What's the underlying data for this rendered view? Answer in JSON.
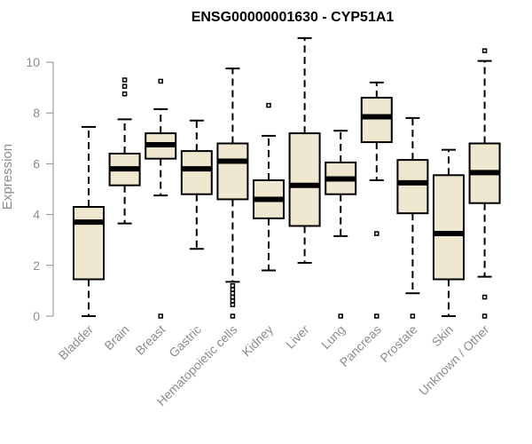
{
  "chart_data": {
    "type": "boxplot",
    "title": "ENSG00000001630 - CYP51A1",
    "ylabel": "Expression",
    "xlabel": "",
    "ylim": [
      0,
      11
    ],
    "yticks": [
      0,
      2,
      4,
      6,
      8,
      10
    ],
    "grid": false,
    "colors": {
      "box_fill": "#efe7cf",
      "stroke": "#000000",
      "axis": "#8c8c8c"
    },
    "categories": [
      "Bladder",
      "Brain",
      "Breast",
      "Gastric",
      "Hematopoietic cells",
      "Kidney",
      "Liver",
      "Lung",
      "Pancreas",
      "Prostate",
      "Skin",
      "Unknown / Other"
    ],
    "boxes": [
      {
        "category": "Bladder",
        "whisker_low": 0.0,
        "q1": 1.45,
        "median": 3.7,
        "q3": 4.3,
        "whisker_high": 7.45,
        "outliers": []
      },
      {
        "category": "Brain",
        "whisker_low": 3.65,
        "q1": 5.15,
        "median": 5.8,
        "q3": 6.4,
        "whisker_high": 7.75,
        "outliers": [
          8.75,
          9.05,
          9.3
        ]
      },
      {
        "category": "Breast",
        "whisker_low": 4.75,
        "q1": 6.2,
        "median": 6.75,
        "q3": 7.2,
        "whisker_high": 8.15,
        "outliers": [
          9.25,
          0.0
        ]
      },
      {
        "category": "Gastric",
        "whisker_low": 2.65,
        "q1": 4.8,
        "median": 5.8,
        "q3": 6.5,
        "whisker_high": 7.7,
        "outliers": []
      },
      {
        "category": "Hematopoietic cells",
        "whisker_low": 1.35,
        "q1": 4.6,
        "median": 6.1,
        "q3": 6.8,
        "whisker_high": 9.75,
        "outliers": [
          1.2,
          1.05,
          0.9,
          0.75,
          0.6,
          0.45,
          0.0
        ]
      },
      {
        "category": "Kidney",
        "whisker_low": 1.8,
        "q1": 3.85,
        "median": 4.6,
        "q3": 5.35,
        "whisker_high": 7.1,
        "outliers": [
          8.3
        ]
      },
      {
        "category": "Liver",
        "whisker_low": 2.1,
        "q1": 3.55,
        "median": 5.15,
        "q3": 7.2,
        "whisker_high": 10.95,
        "outliers": []
      },
      {
        "category": "Lung",
        "whisker_low": 3.15,
        "q1": 4.8,
        "median": 5.4,
        "q3": 6.05,
        "whisker_high": 7.3,
        "outliers": [
          0.0
        ]
      },
      {
        "category": "Pancreas",
        "whisker_low": 5.35,
        "q1": 6.85,
        "median": 7.85,
        "q3": 8.6,
        "whisker_high": 9.2,
        "outliers": [
          3.25,
          0.0
        ]
      },
      {
        "category": "Prostate",
        "whisker_low": 0.9,
        "q1": 4.05,
        "median": 5.25,
        "q3": 6.15,
        "whisker_high": 7.8,
        "outliers": [
          0.0
        ]
      },
      {
        "category": "Skin",
        "whisker_low": 0.0,
        "q1": 1.45,
        "median": 3.25,
        "q3": 5.55,
        "whisker_high": 6.55,
        "outliers": []
      },
      {
        "category": "Unknown / Other",
        "whisker_low": 1.55,
        "q1": 4.45,
        "median": 5.65,
        "q3": 6.8,
        "whisker_high": 10.05,
        "outliers": [
          10.45,
          0.75,
          0.0
        ]
      }
    ]
  }
}
